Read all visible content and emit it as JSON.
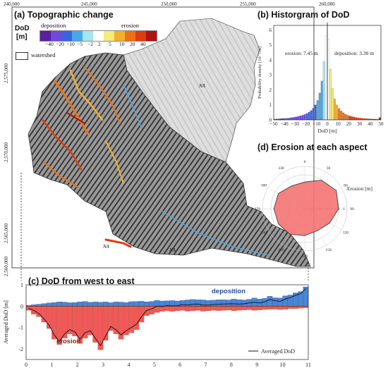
{
  "panels": {
    "a_title": "(a) Topographic change",
    "b_title": "(b) Historgram of DoD",
    "c_title": "(c) DoD from west to east",
    "d_title": "(d) Erosion at each aspect"
  },
  "map": {
    "top_ticks": [
      "240,000",
      "245,000",
      "250,000",
      "255,000",
      "260,000"
    ],
    "left_ticks": [
      "2,575,000",
      "2,570,000",
      "2,565,000",
      "2,560,000"
    ],
    "na_label": "NA",
    "legend": {
      "title_line1": "DoD",
      "title_line2": "[m]",
      "deposition": "deposition",
      "erosion": "erosion",
      "tick_labels": [
        "−40",
        "−20",
        "−10",
        "−5",
        "−2",
        "2",
        "5",
        "10",
        "20",
        "40"
      ],
      "watershed": "watershed",
      "colors": [
        "#5a1ea0",
        "#6f49d8",
        "#3c62e0",
        "#47a8e8",
        "#a6e6ee",
        "#ffffff",
        "#f2ec7a",
        "#f3b02c",
        "#ee7214",
        "#de3c12",
        "#b01212"
      ]
    }
  },
  "chart_data": [
    {
      "id": "b",
      "type": "bar",
      "title": "(b) Historgram of DoD",
      "xlabel": "DoD [m]",
      "ylabel": "Probability density [10⁻²/m]",
      "xlim": [
        -50,
        50
      ],
      "x_ticks": [
        "−50",
        "−40",
        "−30",
        "−20",
        "−10",
        "0",
        "10",
        "20",
        "30",
        "40",
        "50"
      ],
      "y_ticks": [
        "0",
        "1",
        "2",
        "3",
        "4",
        "5",
        "6"
      ],
      "ylim": [
        0,
        6.3
      ],
      "annotations": {
        "erosion": "erosion: 7.45 m",
        "deposition": "deposition: 3.30 m"
      },
      "bin_width": 2,
      "x": [
        -49,
        -47,
        -45,
        -43,
        -41,
        -39,
        -37,
        -35,
        -33,
        -31,
        -29,
        -27,
        -25,
        -23,
        -21,
        -19,
        -17,
        -15,
        -13,
        -11,
        -9,
        -7,
        -5,
        -3,
        -1,
        1,
        3,
        5,
        7,
        9,
        11,
        13,
        15,
        17,
        19,
        21,
        23,
        25,
        27,
        29,
        31,
        33,
        35,
        37,
        39,
        41,
        43,
        45,
        47,
        49
      ],
      "values": [
        0.05,
        0.06,
        0.07,
        0.08,
        0.09,
        0.1,
        0.11,
        0.13,
        0.15,
        0.17,
        0.2,
        0.23,
        0.27,
        0.31,
        0.36,
        0.43,
        0.52,
        0.63,
        0.78,
        1.0,
        1.3,
        1.8,
        2.6,
        3.9,
        5.6,
        5.4,
        3.4,
        2.1,
        1.4,
        1.0,
        0.76,
        0.6,
        0.48,
        0.38,
        0.31,
        0.26,
        0.22,
        0.19,
        0.16,
        0.14,
        0.12,
        0.1,
        0.09,
        0.08,
        0.07,
        0.06,
        0.05,
        0.05,
        0.04,
        0.15
      ]
    },
    {
      "id": "c",
      "type": "bar",
      "title": "(c) DoD from west to east",
      "xlabel": "",
      "ylabel": "Averaged DoD [m]",
      "xlim": [
        0,
        11
      ],
      "ylim": [
        -2.5,
        1.0
      ],
      "x_ticks": [
        "0",
        "1",
        "2",
        "3",
        "4",
        "5",
        "6",
        "7",
        "8",
        "9",
        "10",
        "11"
      ],
      "y_ticks": [
        "1",
        "0",
        "-1",
        "-2"
      ],
      "labels": {
        "deposition": "deposition",
        "erosion": "erosion",
        "legend_line": "Averaged DoD"
      },
      "bin_width": 0.2,
      "deposition": [
        0.04,
        0.07,
        0.09,
        0.12,
        0.15,
        0.17,
        0.2,
        0.19,
        0.16,
        0.17,
        0.2,
        0.22,
        0.18,
        0.2,
        0.18,
        0.2,
        0.16,
        0.2,
        0.19,
        0.17,
        0.21,
        0.22,
        0.23,
        0.2,
        0.22,
        0.27,
        0.24,
        0.25,
        0.26,
        0.24,
        0.27,
        0.29,
        0.31,
        0.3,
        0.29,
        0.27,
        0.28,
        0.3,
        0.3,
        0.29,
        0.33,
        0.3,
        0.29,
        0.32,
        0.38,
        0.33,
        0.36,
        0.46,
        0.39,
        0.38,
        0.48,
        0.52,
        0.62,
        0.68,
        0.9
      ],
      "erosion": [
        -0.2,
        -0.38,
        -0.5,
        -0.75,
        -1.05,
        -1.55,
        -1.8,
        -1.5,
        -1.3,
        -1.4,
        -1.75,
        -1.5,
        -1.35,
        -1.7,
        -2.05,
        -1.6,
        -1.15,
        -1.3,
        -1.55,
        -1.35,
        -1.25,
        -1.1,
        -0.75,
        -0.45,
        -0.38,
        -0.3,
        -0.25,
        -0.22,
        -0.25,
        -0.22,
        -0.2,
        -0.24,
        -0.22,
        -0.2,
        -0.24,
        -0.22,
        -0.2,
        -0.21,
        -0.2,
        -0.18,
        -0.22,
        -0.2,
        -0.18,
        -0.17,
        -0.2,
        -0.18,
        -0.16,
        -0.15,
        -0.14,
        -0.16,
        -0.15,
        -0.12,
        -0.12,
        -0.1,
        -0.08
      ],
      "averaged": [
        -0.1,
        -0.2,
        -0.35,
        -0.6,
        -0.9,
        -1.35,
        -1.65,
        -1.3,
        -1.1,
        -1.2,
        -1.55,
        -1.25,
        -1.15,
        -1.5,
        -1.85,
        -1.4,
        -0.95,
        -1.1,
        -1.35,
        -1.15,
        -1.0,
        -0.85,
        -0.5,
        -0.2,
        -0.13,
        0.0,
        -0.02,
        0.03,
        0.01,
        0.02,
        0.07,
        0.05,
        0.09,
        0.1,
        0.05,
        0.05,
        0.08,
        0.09,
        0.1,
        0.11,
        0.11,
        0.1,
        0.11,
        0.15,
        0.18,
        0.15,
        0.2,
        0.31,
        0.25,
        0.22,
        0.33,
        0.4,
        0.5,
        0.58,
        0.82
      ]
    },
    {
      "id": "d",
      "type": "radar",
      "title": "(d) Erosion at each aspect",
      "unit_label": "Erosion [m]",
      "angle_ticks": [
        "0",
        "30",
        "60",
        "90",
        "120",
        "150",
        "180",
        "210",
        "240",
        "270",
        "300",
        "330"
      ],
      "radial_ticks": [
        "0.2",
        "0.4",
        "0.6",
        "0.8",
        "1"
      ],
      "rmax": 1.0,
      "values": [
        0.63,
        0.78,
        0.86,
        0.8,
        0.68,
        0.6,
        0.64,
        0.7,
        0.72,
        0.73,
        0.72,
        0.62
      ]
    }
  ]
}
